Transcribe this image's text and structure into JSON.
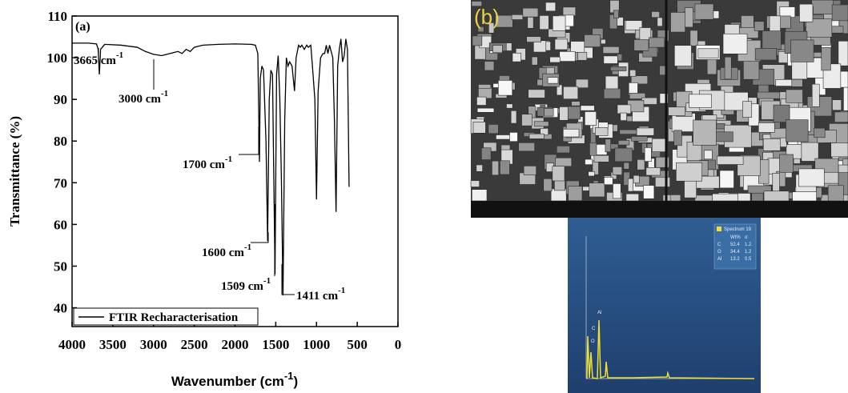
{
  "chart_data": {
    "type": "line",
    "panel_label": "(a)",
    "x_label": {
      "text": "Wavenumber (cm",
      "superscript": "-1",
      "suffix": ")"
    },
    "y_label": "Transmittance (%)",
    "xlim": [
      4000,
      0
    ],
    "ylim": [
      35.5,
      110
    ],
    "xticks": [
      4000,
      3500,
      3000,
      2500,
      2000,
      1500,
      1000,
      500,
      0
    ],
    "yticks": [
      40,
      50,
      60,
      70,
      80,
      90,
      100,
      110
    ],
    "legend": "lower left",
    "series": [
      {
        "name": "FTIR Recharacterisation",
        "color": "#000000",
        "x": [
          4000,
          3800,
          3700,
          3680,
          3665,
          3650,
          3600,
          3400,
          3200,
          3100,
          3000,
          2900,
          2800,
          2700,
          2650,
          2600,
          2550,
          2500,
          2400,
          2200,
          2000,
          1800,
          1750,
          1720,
          1700,
          1690,
          1670,
          1650,
          1620,
          1600,
          1580,
          1560,
          1540,
          1509,
          1490,
          1470,
          1450,
          1430,
          1411,
          1390,
          1370,
          1350,
          1330,
          1300,
          1270,
          1250,
          1220,
          1200,
          1180,
          1150,
          1120,
          1100,
          1070,
          1050,
          1020,
          1000,
          980,
          950,
          920,
          900,
          880,
          860,
          840,
          820,
          800,
          780,
          760,
          740,
          720,
          700,
          680,
          660,
          640,
          620,
          600
        ],
        "values": [
          103.5,
          103.5,
          103.3,
          102,
          96,
          102,
          103.2,
          103,
          102.5,
          101.5,
          100.8,
          100.5,
          101,
          101.5,
          101,
          102,
          101.5,
          102.5,
          103,
          103.2,
          103.3,
          103.2,
          103,
          101,
          75,
          95,
          98,
          97,
          80,
          56,
          90,
          97,
          96,
          48,
          96,
          100.5,
          90,
          70,
          43,
          85,
          100,
          98,
          99,
          98,
          92,
          100,
          103,
          102.5,
          103,
          102,
          103,
          102.5,
          103,
          98,
          90,
          66,
          92,
          100,
          101,
          101,
          103,
          101,
          103,
          101.5,
          100,
          85,
          63,
          98,
          102,
          104.5,
          99,
          100.5,
          104.5,
          102,
          69
        ]
      }
    ],
    "annotations": [
      {
        "text": "3665 cm",
        "superscript": "-1"
      },
      {
        "text": "3000 cm",
        "superscript": "-1"
      },
      {
        "text": "1700 cm",
        "superscript": "-1"
      },
      {
        "text": "1600 cm",
        "superscript": "-1"
      },
      {
        "text": "1509 cm",
        "superscript": "-1"
      },
      {
        "text": "1411 cm",
        "superscript": "-1"
      }
    ]
  },
  "sem_panel": {
    "label": "(b)"
  },
  "edx_panel": {
    "legend_title": "Spectrum 19",
    "columns": [
      "Wt%",
      "σ"
    ],
    "rows": [
      [
        "C",
        "52.4",
        "1.2"
      ],
      [
        "O",
        "34.4",
        "1.2"
      ],
      [
        "Al",
        "13.2",
        "0.5"
      ]
    ],
    "peak_labels": [
      "C",
      "O",
      "Al"
    ]
  }
}
